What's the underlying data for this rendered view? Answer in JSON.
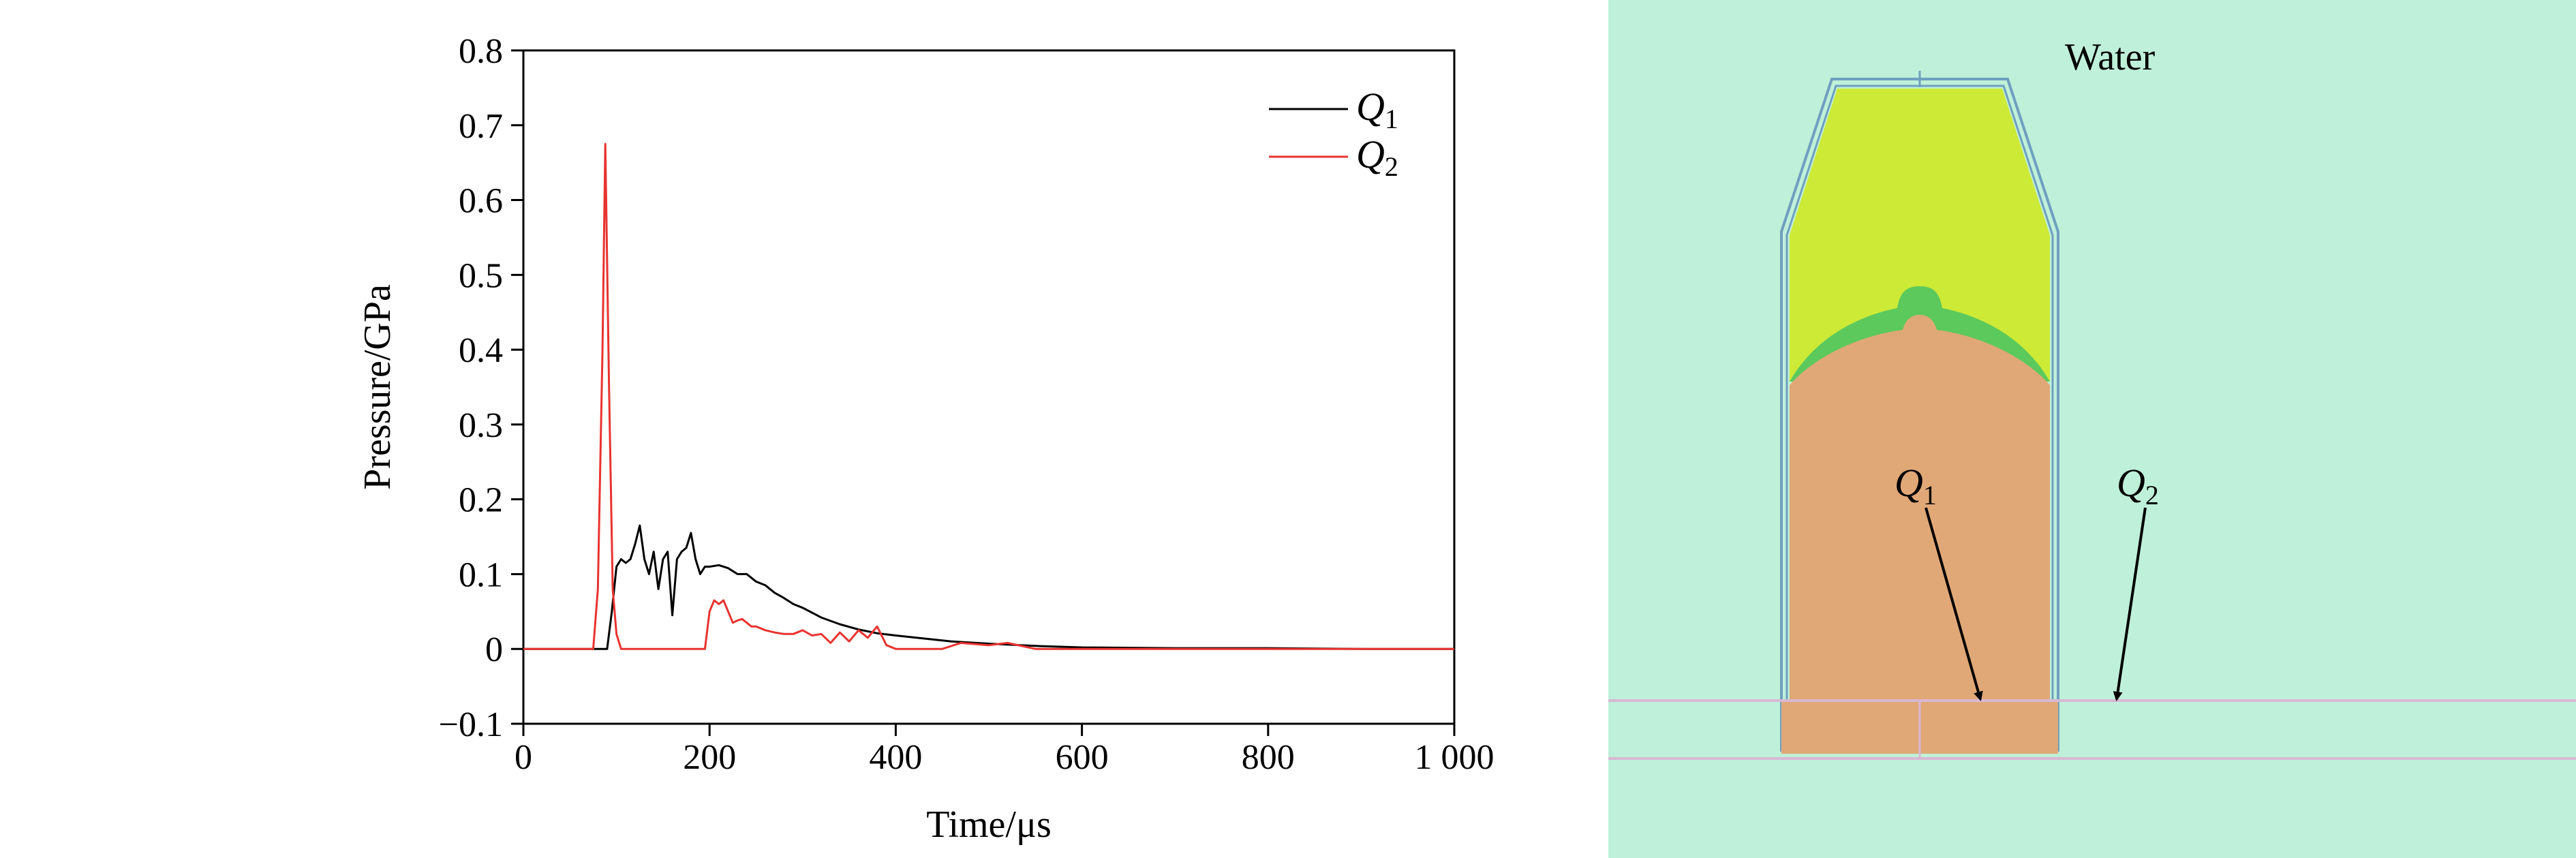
{
  "chart_data": {
    "type": "line",
    "title": "",
    "xlabel": "Time/μs",
    "ylabel": "Pressure/GPa",
    "xlim": [
      0,
      1000
    ],
    "ylim": [
      -0.1,
      0.8
    ],
    "xticks": [
      0,
      200,
      400,
      600,
      800,
      1000
    ],
    "xtick_labels": [
      "0",
      "200",
      "400",
      "600",
      "800",
      "1 000"
    ],
    "yticks": [
      -0.1,
      0,
      0.1,
      0.2,
      0.3,
      0.4,
      0.5,
      0.6,
      0.7,
      0.8
    ],
    "ytick_labels": [
      "−0.1",
      "0",
      "0.1",
      "0.2",
      "0.3",
      "0.4",
      "0.5",
      "0.6",
      "0.7",
      "0.8"
    ],
    "grid": false,
    "legend_position": "top-right",
    "series": [
      {
        "name": "Q1",
        "color": "#000000",
        "x": [
          0,
          90,
          95,
          100,
          105,
          110,
          115,
          120,
          125,
          130,
          135,
          140,
          145,
          150,
          155,
          160,
          165,
          170,
          175,
          180,
          185,
          190,
          195,
          200,
          210,
          220,
          230,
          240,
          250,
          260,
          270,
          280,
          290,
          300,
          320,
          340,
          360,
          380,
          400,
          430,
          460,
          500,
          550,
          600,
          700,
          800,
          900,
          1000
        ],
        "y": [
          0,
          0,
          0.05,
          0.11,
          0.12,
          0.115,
          0.12,
          0.14,
          0.165,
          0.12,
          0.1,
          0.13,
          0.08,
          0.12,
          0.13,
          0.045,
          0.12,
          0.13,
          0.135,
          0.155,
          0.12,
          0.1,
          0.11,
          0.11,
          0.112,
          0.108,
          0.1,
          0.1,
          0.09,
          0.085,
          0.075,
          0.068,
          0.06,
          0.055,
          0.042,
          0.033,
          0.026,
          0.021,
          0.018,
          0.014,
          0.01,
          0.007,
          0.004,
          0.002,
          0.001,
          0.001,
          0,
          0
        ]
      },
      {
        "name": "Q2",
        "color": "#e8332f",
        "x": [
          0,
          75,
          80,
          85,
          88,
          92,
          96,
          100,
          105,
          195,
          200,
          205,
          210,
          215,
          220,
          225,
          230,
          235,
          240,
          245,
          250,
          260,
          270,
          280,
          290,
          300,
          310,
          320,
          330,
          340,
          350,
          360,
          370,
          380,
          390,
          400,
          420,
          450,
          470,
          500,
          520,
          550,
          600,
          700,
          800,
          900,
          1000
        ],
        "y": [
          0,
          0,
          0.08,
          0.4,
          0.675,
          0.35,
          0.08,
          0.02,
          0,
          0,
          0.05,
          0.065,
          0.06,
          0.065,
          0.05,
          0.035,
          0.038,
          0.04,
          0.035,
          0.03,
          0.03,
          0.025,
          0.022,
          0.02,
          0.02,
          0.025,
          0.018,
          0.02,
          0.008,
          0.022,
          0.01,
          0.025,
          0.015,
          0.03,
          0.005,
          0,
          0,
          0,
          0.008,
          0.005,
          0.008,
          0,
          0,
          0,
          0,
          0,
          0
        ]
      }
    ]
  },
  "legend": {
    "q1_main": "Q",
    "q1_sub": "1",
    "q2_main": "Q",
    "q2_sub": "2"
  },
  "diagram": {
    "water_label": "Water",
    "q1_main": "Q",
    "q1_sub": "1",
    "q2_main": "Q",
    "q2_sub": "2",
    "colors": {
      "water": "#bff0d9",
      "casing_outline": "#6f9fbf",
      "explosive": "#cdea36",
      "liner": "#5cc95c",
      "charge": "#e0a877",
      "gauge_line": "#d8b8d4"
    }
  }
}
